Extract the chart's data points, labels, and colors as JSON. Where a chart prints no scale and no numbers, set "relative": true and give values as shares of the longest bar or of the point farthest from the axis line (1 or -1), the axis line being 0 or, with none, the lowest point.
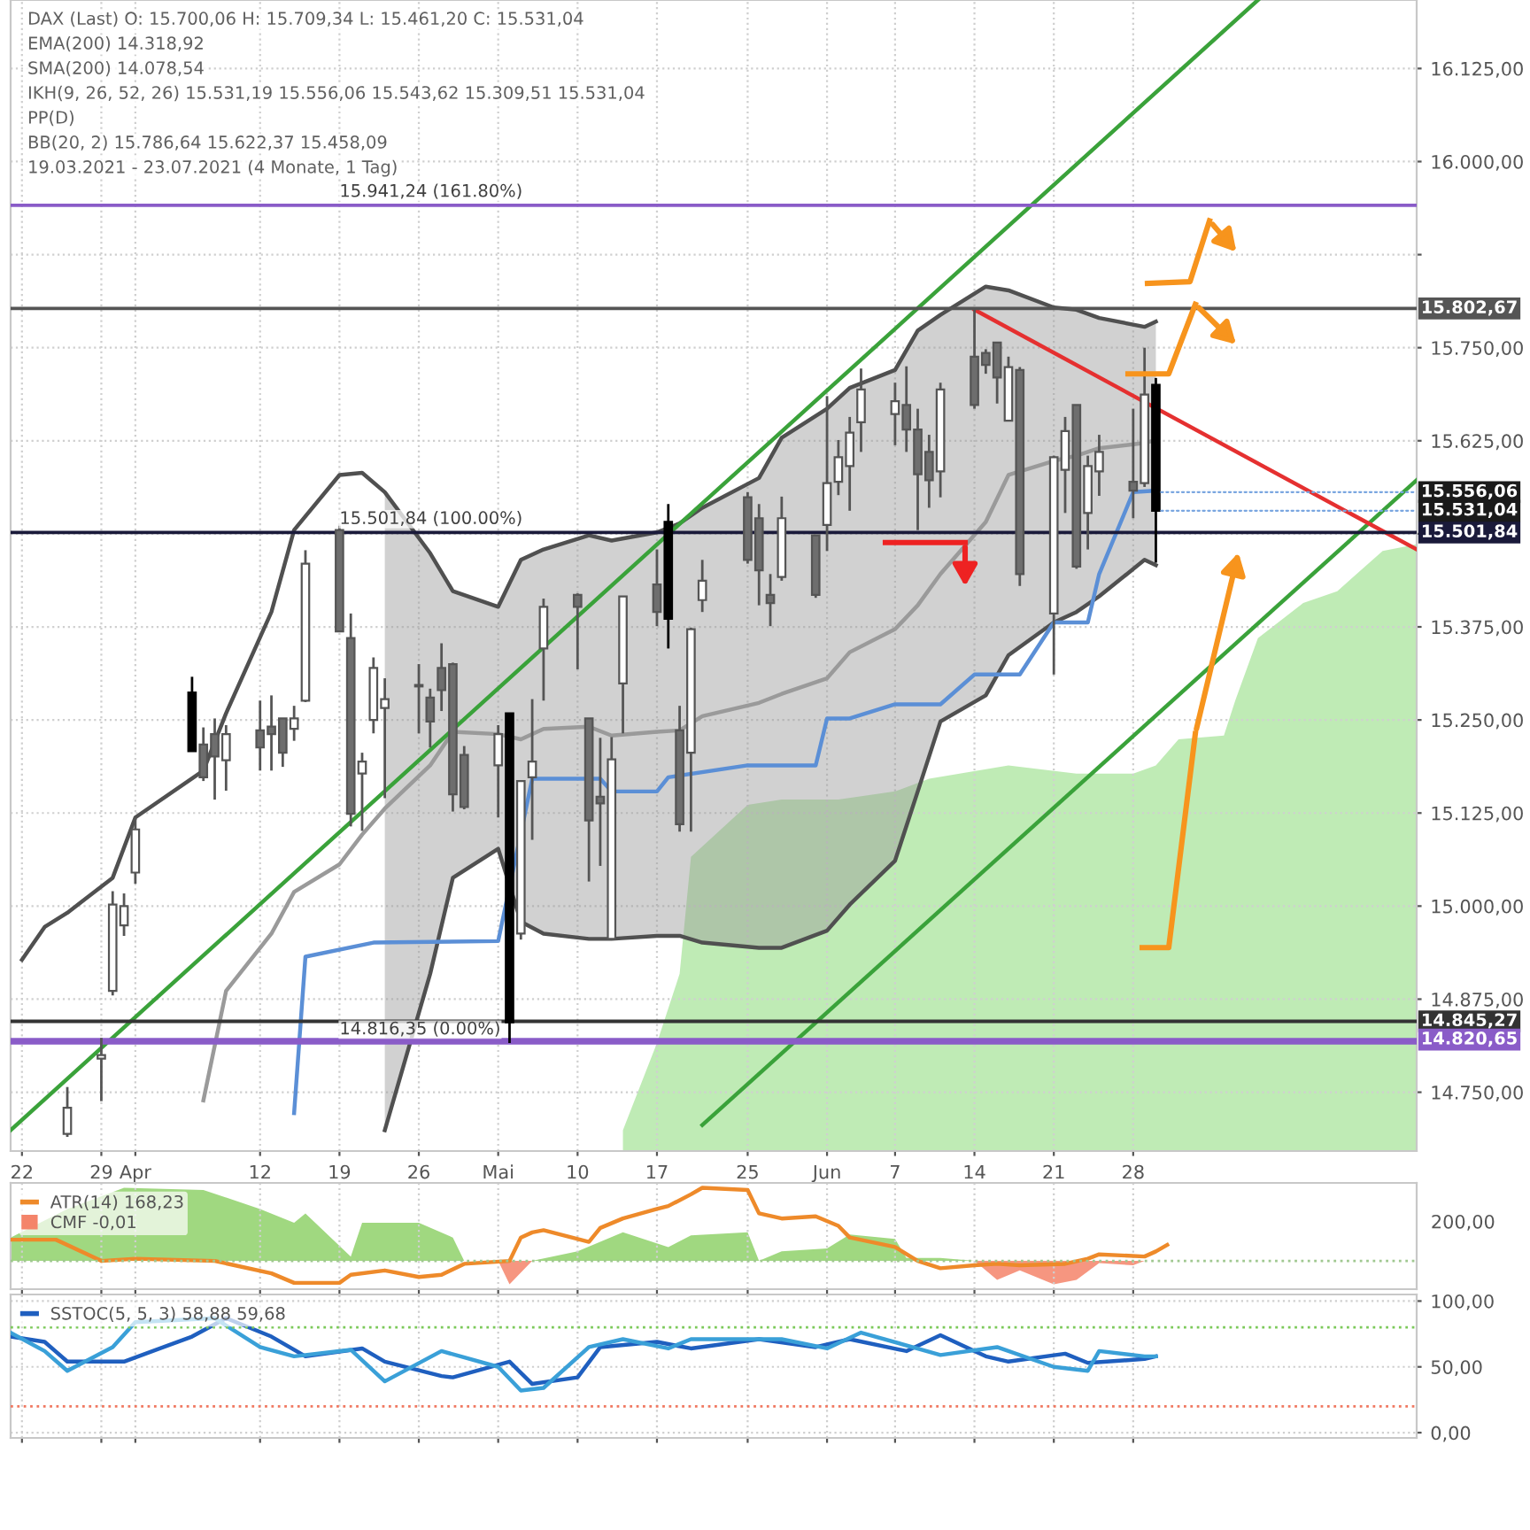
{
  "chart_data": [
    {
      "type": "candlestick",
      "annotations": [
        "DAX (Last) O: 15.700,06 H: 15.709,34 L: 15.461,20 C: 15.531,04",
        "EMA(200) 14.318,92",
        "SMA(200) 14.078,54",
        "IKH(9, 26, 52, 26) 15.531,19 15.556,06 15.543,62 15.309,51 15.531,04",
        "PP(D)",
        "BB(20, 2) 15.786,64 15.622,37 15.458,09",
        "19.03.2021 - 23.07.2021 (4 Monate, 1 Tag)",
        {
          "text": "15.941,24 (161.80%)",
          "x": "2021-04-19",
          "y": 15941.24
        },
        {
          "text": "15.501,84 (100.00%)",
          "x": "2021-04-19",
          "y": 15501.84
        },
        {
          "text": "14.816,35 (0.00%)",
          "x": "2021-04-19",
          "y": 14816.35
        },
        {
          "text": "15.556,06",
          "x": "2021-06-30",
          "y": 15556.06
        },
        {
          "text": "15.531,04",
          "x": "2021-06-30",
          "y": 15531.04
        }
      ],
      "x": [
        "2021-03-26",
        "2021-03-29",
        "2021-03-30",
        "2021-03-31",
        "2021-04-01",
        "2021-04-06",
        "2021-04-07",
        "2021-04-08",
        "2021-04-09",
        "2021-04-12",
        "2021-04-13",
        "2021-04-14",
        "2021-04-15",
        "2021-04-16",
        "2021-04-19",
        "2021-04-20",
        "2021-04-21",
        "2021-04-22",
        "2021-04-23",
        "2021-04-26",
        "2021-04-27",
        "2021-04-28",
        "2021-04-29",
        "2021-04-30",
        "2021-05-03",
        "2021-05-04",
        "2021-05-05",
        "2021-05-06",
        "2021-05-07",
        "2021-05-10",
        "2021-05-11",
        "2021-05-12",
        "2021-05-13",
        "2021-05-14",
        "2021-05-17",
        "2021-05-18",
        "2021-05-19",
        "2021-05-20",
        "2021-05-21",
        "2021-05-25",
        "2021-05-26",
        "2021-05-27",
        "2021-05-28",
        "2021-05-31",
        "2021-06-01",
        "2021-06-02",
        "2021-06-03",
        "2021-06-04",
        "2021-06-07",
        "2021-06-08",
        "2021-06-09",
        "2021-06-10",
        "2021-06-11",
        "2021-06-14",
        "2021-06-15",
        "2021-06-16",
        "2021-06-17",
        "2021-06-18",
        "2021-06-21",
        "2021-06-22",
        "2021-06-23",
        "2021-06-24",
        "2021-06-25",
        "2021-06-28",
        "2021-06-29",
        "2021-06-30"
      ],
      "ohlc": [
        [
          14694,
          14757,
          14690,
          14729
        ],
        [
          14795,
          14823,
          14738,
          14800
        ],
        [
          14886,
          15020,
          14880,
          15002
        ],
        [
          14974,
          15017,
          14960,
          15000
        ],
        [
          15045,
          15119,
          15030,
          15103
        ],
        [
          15287,
          15308,
          15208,
          15208
        ],
        [
          15217,
          15240,
          15168,
          15173
        ],
        [
          15231,
          15252,
          15143,
          15201
        ],
        [
          15196,
          15243,
          15155,
          15231
        ],
        [
          15236,
          15276,
          15182,
          15213
        ],
        [
          15241,
          15283,
          15182,
          15231
        ],
        [
          15252,
          15252,
          15187,
          15206
        ],
        [
          15238,
          15269,
          15222,
          15252
        ],
        [
          15276,
          15478,
          15274,
          15460
        ],
        [
          15505,
          15511,
          15369,
          15369
        ],
        [
          15360,
          15393,
          15107,
          15124
        ],
        [
          15178,
          15206,
          15101,
          15194
        ],
        [
          15250,
          15334,
          15232,
          15320
        ],
        [
          15266,
          15306,
          15145,
          15278
        ],
        [
          15295,
          15325,
          15232,
          15297
        ],
        [
          15280,
          15292,
          15213,
          15248
        ],
        [
          15320,
          15353,
          15262,
          15290
        ],
        [
          15325,
          15327,
          15127,
          15150
        ],
        [
          15203,
          15215,
          15130,
          15133
        ],
        [
          15189,
          15243,
          15119,
          15231
        ],
        [
          15259,
          15259,
          14816,
          14844
        ],
        [
          14963,
          15168,
          14955,
          15168
        ],
        [
          15173,
          15278,
          15089,
          15194
        ],
        [
          15346,
          15413,
          15276,
          15402
        ],
        [
          15418,
          15420,
          15318,
          15402
        ],
        [
          15252,
          15252,
          15033,
          15115
        ],
        [
          15147,
          15226,
          15054,
          15138
        ],
        [
          14956,
          15227,
          14956,
          15197
        ],
        [
          15299,
          15416,
          15232,
          15416
        ],
        [
          15432,
          15479,
          15376,
          15395
        ],
        [
          15516,
          15540,
          15346,
          15386
        ],
        [
          15236,
          15269,
          15100,
          15110
        ],
        [
          15206,
          15374,
          15100,
          15372
        ],
        [
          15411,
          15465,
          15395,
          15437
        ],
        [
          15549,
          15556,
          15460,
          15465
        ],
        [
          15521,
          15540,
          15404,
          15451
        ],
        [
          15418,
          15446,
          15376,
          15407
        ],
        [
          15442,
          15550,
          15437,
          15521
        ],
        [
          15498,
          15498,
          15414,
          15418
        ],
        [
          15512,
          15685,
          15477,
          15568
        ],
        [
          15570,
          15626,
          15552,
          15603
        ],
        [
          15591,
          15657,
          15531,
          15636
        ],
        [
          15650,
          15722,
          15610,
          15694
        ],
        [
          15661,
          15703,
          15619,
          15678
        ],
        [
          15673,
          15725,
          15610,
          15640
        ],
        [
          15640,
          15668,
          15505,
          15580
        ],
        [
          15610,
          15633,
          15535,
          15572
        ],
        [
          15584,
          15703,
          15549,
          15694
        ],
        [
          15738,
          15801,
          15668,
          15673
        ],
        [
          15743,
          15748,
          15715,
          15727
        ],
        [
          15757,
          15757,
          15675,
          15710
        ],
        [
          15652,
          15738,
          15652,
          15724
        ],
        [
          15720,
          15724,
          15430,
          15446
        ],
        [
          15393,
          15605,
          15311,
          15603
        ],
        [
          15586,
          15657,
          15528,
          15638
        ],
        [
          15673,
          15673,
          15453,
          15456
        ],
        [
          15528,
          15605,
          15479,
          15591
        ],
        [
          15584,
          15633,
          15551,
          15610
        ],
        [
          15570,
          15668,
          15521,
          15558
        ],
        [
          15568,
          15750,
          15563,
          15687
        ],
        [
          15700.06,
          15709.34,
          15461.2,
          15531.04
        ]
      ],
      "colors": [
        "#ffffff",
        "#ffffff",
        "#ffffff",
        "#ffffff",
        "#ffffff",
        "#000000",
        "#6e6e6e",
        "#6e6e6e",
        "#ffffff",
        "#6e6e6e",
        "#6e6e6e",
        "#6e6e6e",
        "#ffffff",
        "#ffffff",
        "#6e6e6e",
        "#6e6e6e",
        "#ffffff",
        "#ffffff",
        "#ffffff",
        "#ffffff",
        "#6e6e6e",
        "#6e6e6e",
        "#6e6e6e",
        "#6e6e6e",
        "#ffffff",
        "#000000",
        "#ffffff",
        "#ffffff",
        "#ffffff",
        "#6e6e6e",
        "#6e6e6e",
        "#6e6e6e",
        "#ffffff",
        "#ffffff",
        "#6e6e6e",
        "#000000",
        "#6e6e6e",
        "#ffffff",
        "#ffffff",
        "#6e6e6e",
        "#6e6e6e",
        "#6e6e6e",
        "#ffffff",
        "#6e6e6e",
        "#ffffff",
        "#ffffff",
        "#ffffff",
        "#ffffff",
        "#ffffff",
        "#6e6e6e",
        "#6e6e6e",
        "#6e6e6e",
        "#ffffff",
        "#6e6e6e",
        "#6e6e6e",
        "#6e6e6e",
        "#ffffff",
        "#6e6e6e",
        "#ffffff",
        "#ffffff",
        "#6e6e6e",
        "#ffffff",
        "#ffffff",
        "#6e6e6e",
        "#ffffff",
        "#000000"
      ],
      "series": [
        {
          "type": "line",
          "color": "#9a9a9a",
          "x": [
            "2021-04-07",
            "2021-04-09",
            "2021-04-13",
            "2021-04-15",
            "2021-04-19",
            "2021-04-21",
            "2021-04-23",
            "2021-04-27",
            "2021-04-29",
            "2021-05-03",
            "2021-05-05",
            "2021-05-07",
            "2021-05-11",
            "2021-05-13",
            "2021-05-17",
            "2021-05-19",
            "2021-05-21",
            "2021-05-26",
            "2021-05-28",
            "2021-06-01",
            "2021-06-03",
            "2021-06-07",
            "2021-06-09",
            "2021-06-11",
            "2021-06-15",
            "2021-06-17",
            "2021-06-21",
            "2021-06-23",
            "2021-06-25",
            "2021-06-29",
            "2021-06-30"
          ],
          "values": [
            14739,
            14886,
            14963,
            15019,
            15056,
            15096,
            15131,
            15189,
            15234,
            15231,
            15224,
            15238,
            15241,
            15229,
            15234,
            15236,
            15255,
            15273,
            15285,
            15306,
            15341,
            15372,
            15404,
            15446,
            15516,
            15579,
            15598,
            15605,
            15615,
            15622,
            15626
          ],
          "lower": [
            null,
            null,
            null,
            null,
            null,
            null,
            14699,
            14909,
            15038,
            15077,
            14979,
            14963,
            14956,
            14956,
            14960,
            14960,
            14951,
            14944,
            14944,
            14967,
            15002,
            15061,
            15154,
            15248,
            15283,
            15337,
            15381,
            15395,
            15416,
            15465,
            15458
          ],
          "upper": [
            null,
            null,
            null,
            null,
            null,
            null,
            15556,
            15474,
            15423,
            15402,
            15465,
            15479,
            15498,
            15491,
            15502,
            15514,
            15535,
            15575,
            15629,
            15668,
            15696,
            15720,
            15773,
            15794,
            15832,
            15827,
            15804,
            15801,
            15790,
            15778,
            15785
          ]
        },
        {
          "type": "line",
          "color": "#505050",
          "x": [
            "2021-03-22",
            "2021-03-24",
            "2021-03-26",
            "2021-03-30",
            "2021-04-01",
            "2021-04-07",
            "2021-04-09",
            "2021-04-13",
            "2021-04-15",
            "2021-04-19",
            "2021-04-21",
            "2021-04-23",
            "2021-04-27",
            "2021-04-29",
            "2021-05-03",
            "2021-05-05",
            "2021-05-07",
            "2021-05-11",
            "2021-05-13",
            "2021-05-17",
            "2021-05-19",
            "2021-05-21",
            "2021-05-26",
            "2021-05-28",
            "2021-06-01",
            "2021-06-03",
            "2021-06-07",
            "2021-06-09",
            "2021-06-11",
            "2021-06-15",
            "2021-06-17",
            "2021-06-21",
            "2021-06-23",
            "2021-06-25",
            "2021-06-29",
            "2021-06-30"
          ],
          "values": [
            14928,
            14972,
            14991,
            15038,
            15119,
            15182,
            15259,
            15395,
            15505,
            15579,
            15582,
            15556,
            15474,
            15423,
            15402,
            15465,
            15479,
            15498,
            15491,
            15502,
            15514,
            15535,
            15575,
            15629,
            15668,
            15696,
            15720,
            15773,
            15794,
            15832,
            15827,
            15804,
            15801,
            15790,
            15778,
            15785
          ]
        },
        {
          "type": "line",
          "color": "#505050",
          "x": [
            "2021-04-23",
            "2021-04-27",
            "2021-04-29",
            "2021-05-03",
            "2021-05-05",
            "2021-05-07",
            "2021-05-11",
            "2021-05-13",
            "2021-05-17",
            "2021-05-19",
            "2021-05-21",
            "2021-05-26",
            "2021-05-28",
            "2021-06-01",
            "2021-06-03",
            "2021-06-07",
            "2021-06-09",
            "2021-06-11",
            "2021-06-15",
            "2021-06-17",
            "2021-06-21",
            "2021-06-23",
            "2021-06-25",
            "2021-06-29",
            "2021-06-30"
          ],
          "values": [
            14699,
            14909,
            15038,
            15077,
            14979,
            14963,
            14956,
            14956,
            14960,
            14960,
            14951,
            14944,
            14944,
            14967,
            15002,
            15061,
            15154,
            15248,
            15283,
            15337,
            15381,
            15395,
            15416,
            15465,
            15458
          ]
        },
        {
          "type": "area",
          "color": "#b4e8a8",
          "x": [
            "2021-05-14",
            "2021-05-17",
            "2021-05-19",
            "2021-05-20",
            "2021-05-25",
            "2021-05-28",
            "2021-06-02",
            "2021-06-07",
            "2021-06-10",
            "2021-06-17",
            "2021-06-23",
            "2021-06-28",
            "2021-06-30",
            "2021-07-02",
            "2021-07-06",
            "2021-07-07",
            "2021-07-09",
            "2021-07-13",
            "2021-07-16",
            "2021-07-20",
            "2021-07-23"
          ],
          "values": [
            14699,
            14816,
            14909,
            15066,
            15136,
            15143,
            15143,
            15154,
            15171,
            15189,
            15178,
            15178,
            15189,
            15224,
            15229,
            15276,
            15360,
            15407,
            15423,
            15477,
            15486
          ]
        },
        {
          "type": "line",
          "color": "#5b8fd6",
          "x": [
            "2021-04-15",
            "2021-04-16",
            "2021-04-22",
            "2021-05-03",
            "2021-05-06",
            "2021-05-12",
            "2021-05-13",
            "2021-05-17",
            "2021-05-18",
            "2021-05-25",
            "2021-05-31",
            "2021-06-01",
            "2021-06-03",
            "2021-06-07",
            "2021-06-11",
            "2021-06-14",
            "2021-06-18",
            "2021-06-21",
            "2021-06-24",
            "2021-06-25",
            "2021-06-28",
            "2021-06-30"
          ],
          "values": [
            14722,
            14932,
            14951,
            14953,
            15171,
            15171,
            15154,
            15154,
            15173,
            15189,
            15189,
            15252,
            15252,
            15271,
            15271,
            15311,
            15311,
            15381,
            15381,
            15446,
            15556,
            15558
          ]
        },
        {
          "type": "line",
          "color": "#3aa23a",
          "x": [
            "2021-03-21",
            "2021-07-09"
          ],
          "values": [
            14699,
            16217
          ]
        },
        {
          "type": "line",
          "color": "#3aa23a",
          "x": [
            "2021-05-21",
            "2021-07-23"
          ],
          "values": [
            14706,
            15572
          ]
        },
        {
          "type": "line",
          "color": "#e53030",
          "x": [
            "2021-06-14",
            "2021-07-23"
          ],
          "values": [
            15801,
            15479
          ]
        }
      ],
      "ref_lines": [
        {
          "axis": "y",
          "value": 15941.24,
          "color": "#8a5cc8"
        },
        {
          "axis": "y",
          "value": 15802.67,
          "label": "15.802,67",
          "color": "#555555"
        },
        {
          "axis": "y",
          "value": 15501.84,
          "label": "15.501,84",
          "color": "#1a1a3a"
        },
        {
          "axis": "y",
          "value": 14845.27,
          "label": "14.845,27",
          "color": "#333333"
        },
        {
          "axis": "y",
          "value": 14820.65,
          "label": "14.820,65",
          "color": "#8a5cc8"
        },
        {
          "axis": "y",
          "value": 14816.35,
          "color": "#8a5cc8"
        }
      ],
      "xlim": [
        "2021-03-21",
        "2021-07-23"
      ],
      "xticks": [
        {
          "value": "2021-03-22",
          "label": "22"
        },
        {
          "value": "2021-03-29",
          "label": "29"
        },
        {
          "value": "2021-04-01",
          "label": "Apr"
        },
        {
          "value": "2021-04-12",
          "label": "12"
        },
        {
          "value": "2021-04-19",
          "label": "19"
        },
        {
          "value": "2021-04-26",
          "label": "26"
        },
        {
          "value": "2021-05-03",
          "label": "Mai"
        },
        {
          "value": "2021-05-10",
          "label": "10"
        },
        {
          "value": "2021-05-17",
          "label": "17"
        },
        {
          "value": "2021-05-25",
          "label": "25"
        },
        {
          "value": "2021-06-01",
          "label": "Jun"
        },
        {
          "value": "2021-06-07",
          "label": "7"
        },
        {
          "value": "2021-06-14",
          "label": "14"
        },
        {
          "value": "2021-06-21",
          "label": "21"
        },
        {
          "value": "2021-06-28",
          "label": "28"
        }
      ],
      "ylim": [
        14671,
        16217
      ],
      "yticks": [
        {
          "value": 14750,
          "label": "14.750,00"
        },
        {
          "value": 14875,
          "label": "14.875,00"
        },
        {
          "value": 15000,
          "label": "15.000,00"
        },
        {
          "value": 15125,
          "label": "15.125,00"
        },
        {
          "value": 15250,
          "label": "15.250,00"
        },
        {
          "value": 15375,
          "label": "15.375,00"
        },
        {
          "value": 15500,
          "label": null
        },
        {
          "value": 15625,
          "label": "15.625,00"
        },
        {
          "value": 15750,
          "label": "15.750,00"
        },
        {
          "value": 15875,
          "label": null
        },
        {
          "value": 16000,
          "label": "16.000,00"
        },
        {
          "value": 16125,
          "label": "16.125,00"
        }
      ],
      "grid": true
    },
    {
      "type": "line",
      "relative": true,
      "legend": "top left",
      "tick_labels": false,
      "grid": true,
      "annotations": [
        "200,00"
      ],
      "ref_lines": [
        {
          "axis": "y",
          "value": 0,
          "color": "#a0c890",
          "line_style": "dotted"
        }
      ],
      "xlim": [
        "2021-03-21",
        "2021-07-23"
      ],
      "xticks": [
        {
          "value": "2021-03-22",
          "label": null
        },
        {
          "value": "2021-03-29",
          "label": null
        },
        {
          "value": "2021-04-01",
          "label": null
        },
        {
          "value": "2021-04-12",
          "label": null
        },
        {
          "value": "2021-04-19",
          "label": null
        },
        {
          "value": "2021-04-26",
          "label": null
        },
        {
          "value": "2021-05-03",
          "label": null
        },
        {
          "value": "2021-05-10",
          "label": null
        },
        {
          "value": "2021-05-17",
          "label": null
        },
        {
          "value": "2021-05-25",
          "label": null
        },
        {
          "value": "2021-06-01",
          "label": null
        },
        {
          "value": "2021-06-07",
          "label": null
        },
        {
          "value": "2021-06-14",
          "label": null
        },
        {
          "value": "2021-06-21",
          "label": null
        },
        {
          "value": "2021-06-28",
          "label": null
        }
      ],
      "series": [
        {
          "type": "line",
          "name": "ATR(14) 168,23",
          "color": "#ee8a2a",
          "x": [
            "2021-03-21",
            "2021-03-25",
            "2021-03-29",
            "2021-04-01",
            "2021-04-08",
            "2021-04-13",
            "2021-04-15",
            "2021-04-19",
            "2021-04-20",
            "2021-04-23",
            "2021-04-26",
            "2021-04-28",
            "2021-04-30",
            "2021-05-04",
            "2021-05-05",
            "2021-05-06",
            "2021-05-07",
            "2021-05-11",
            "2021-05-12",
            "2021-05-14",
            "2021-05-17",
            "2021-05-18",
            "2021-05-20",
            "2021-05-21",
            "2021-05-25",
            "2021-05-26",
            "2021-05-28",
            "2021-05-31",
            "2021-06-02",
            "2021-06-03",
            "2021-06-07",
            "2021-06-09",
            "2021-06-11",
            "2021-06-14",
            "2021-06-16",
            "2021-06-18",
            "2021-06-22",
            "2021-06-24",
            "2021-06-25",
            "2021-06-29",
            "2021-06-30",
            "2021-07-01"
          ],
          "values": [
            0.29,
            0.29,
            0,
            0.03,
            0,
            -0.17,
            -0.3,
            -0.3,
            -0.19,
            -0.13,
            -0.22,
            -0.19,
            -0.04,
            0,
            0.32,
            0.39,
            0.42,
            0.26,
            0.45,
            0.58,
            0.71,
            0.75,
            0.91,
            1,
            0.97,
            0.65,
            0.58,
            0.61,
            0.48,
            0.32,
            0.19,
            0,
            -0.1,
            -0.06,
            -0.04,
            -0.06,
            -0.04,
            0.03,
            0.09,
            0.06,
            0.13,
            0.22
          ]
        },
        {
          "type": "area",
          "color": "#8fd16a",
          "x": [
            "2021-03-21",
            "2021-03-26",
            "2021-03-31",
            "2021-04-07",
            "2021-04-12",
            "2021-04-15",
            "2021-04-16",
            "2021-04-20",
            "2021-04-21",
            "2021-04-26",
            "2021-04-29",
            "2021-04-30",
            "2021-05-03",
            "2021-05-06",
            "2021-05-10",
            "2021-05-12",
            "2021-05-14",
            "2021-05-18",
            "2021-05-20",
            "2021-05-25",
            "2021-05-26",
            "2021-05-28",
            "2021-06-01",
            "2021-06-03",
            "2021-06-07",
            "2021-06-08",
            "2021-06-11",
            "2021-06-14"
          ],
          "values": [
            0.32,
            0.71,
            1,
            0.97,
            0.71,
            0.52,
            0.65,
            0.06,
            0.52,
            0.52,
            0.32,
            0,
            0,
            0,
            0.13,
            0.26,
            0.39,
            0.19,
            0.35,
            0.39,
            0,
            0.13,
            0.17,
            0.36,
            0.3,
            0.04,
            0.04,
            0
          ]
        },
        {
          "type": "area",
          "name": "CMF -0,01",
          "color": "#f4846a",
          "x": [
            "2021-05-03",
            "2021-05-04",
            "2021-05-06",
            "2021-06-14",
            "2021-06-16",
            "2021-06-18",
            "2021-06-21",
            "2021-06-23",
            "2021-06-25",
            "2021-06-28",
            "2021-06-29"
          ],
          "values": [
            0,
            -0.32,
            0,
            0,
            -0.26,
            -0.13,
            -0.32,
            -0.26,
            -0.03,
            -0.06,
            0
          ]
        }
      ]
    },
    {
      "type": "line",
      "legend": "top left",
      "tick_labels": "y",
      "grid": true,
      "xlim": [
        "2021-03-21",
        "2021-07-23"
      ],
      "xticks": [
        {
          "value": "2021-03-22",
          "label": null
        },
        {
          "value": "2021-03-29",
          "label": null
        },
        {
          "value": "2021-04-01",
          "label": null
        },
        {
          "value": "2021-04-12",
          "label": null
        },
        {
          "value": "2021-04-19",
          "label": null
        },
        {
          "value": "2021-04-26",
          "label": null
        },
        {
          "value": "2021-05-03",
          "label": null
        },
        {
          "value": "2021-05-10",
          "label": null
        },
        {
          "value": "2021-05-17",
          "label": null
        },
        {
          "value": "2021-05-25",
          "label": null
        },
        {
          "value": "2021-06-01",
          "label": null
        },
        {
          "value": "2021-06-07",
          "label": null
        },
        {
          "value": "2021-06-14",
          "label": null
        },
        {
          "value": "2021-06-21",
          "label": null
        },
        {
          "value": "2021-06-28",
          "label": null
        }
      ],
      "ylim": [
        -4,
        105
      ],
      "yticks": [
        {
          "value": 0,
          "label": "0,00"
        },
        {
          "value": 50,
          "label": "50,00"
        },
        {
          "value": 100,
          "label": "100,00"
        }
      ],
      "ref_lines": [
        {
          "axis": "y",
          "value": 80,
          "color": "#7cc95a",
          "line_style": "dotted"
        },
        {
          "axis": "y",
          "value": 20,
          "color": "#f07860",
          "line_style": "dotted"
        }
      ],
      "series": [
        {
          "type": "line",
          "name": "SSTOC(5, 5, 3) 58,88 59,68",
          "color": "#1f5fbf",
          "x": [
            "2021-03-21",
            "2021-03-24",
            "2021-03-26",
            "2021-03-31",
            "2021-04-06",
            "2021-04-09",
            "2021-04-13",
            "2021-04-16",
            "2021-04-21",
            "2021-04-23",
            "2021-04-28",
            "2021-04-29",
            "2021-05-04",
            "2021-05-06",
            "2021-05-10",
            "2021-05-12",
            "2021-05-17",
            "2021-05-20",
            "2021-05-26",
            "2021-05-31",
            "2021-06-03",
            "2021-06-08",
            "2021-06-11",
            "2021-06-15",
            "2021-06-17",
            "2021-06-22",
            "2021-06-24",
            "2021-06-29",
            "2021-06-30"
          ],
          "values": [
            73,
            69,
            54,
            54,
            73,
            87,
            73,
            58,
            64,
            54,
            43,
            42,
            54,
            37,
            42,
            65,
            69,
            64,
            71,
            65,
            71,
            62,
            74,
            58,
            54,
            60,
            53,
            56,
            58
          ]
        },
        {
          "type": "line",
          "color": "#3aa0d8",
          "x": [
            "2021-03-21",
            "2021-03-24",
            "2021-03-26",
            "2021-03-30",
            "2021-04-01",
            "2021-04-08",
            "2021-04-12",
            "2021-04-15",
            "2021-04-20",
            "2021-04-23",
            "2021-04-28",
            "2021-05-03",
            "2021-05-05",
            "2021-05-07",
            "2021-05-11",
            "2021-05-14",
            "2021-05-18",
            "2021-05-20",
            "2021-05-28",
            "2021-06-01",
            "2021-06-04",
            "2021-06-11",
            "2021-06-16",
            "2021-06-21",
            "2021-06-24",
            "2021-06-25",
            "2021-06-29",
            "2021-06-30"
          ],
          "values": [
            76,
            62,
            47,
            65,
            84,
            87,
            65,
            58,
            63,
            39,
            62,
            50,
            32,
            34,
            65,
            71,
            64,
            71,
            71,
            64,
            76,
            59,
            65,
            50,
            47,
            62,
            58,
            58
          ]
        }
      ]
    }
  ]
}
